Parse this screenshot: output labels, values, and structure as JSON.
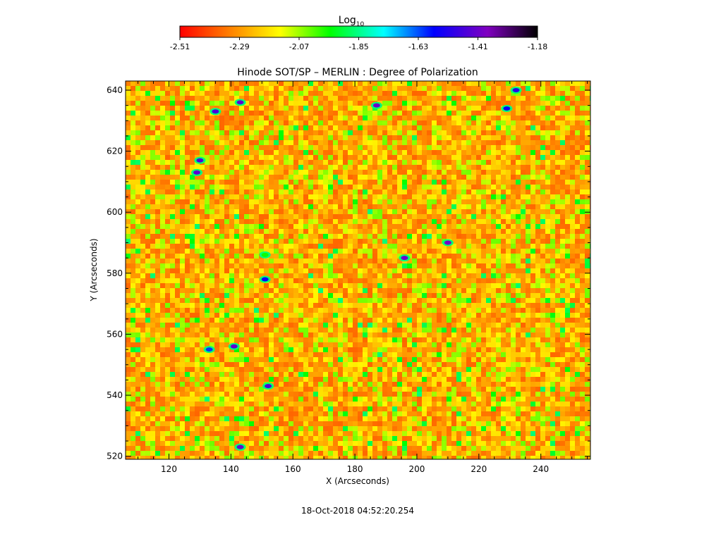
{
  "chart_data": {
    "type": "heatmap",
    "title": "Hinode SOT/SP – MERLIN : Degree of Polarization",
    "xlabel": "X (Arcseconds)",
    "ylabel": "Y (Arcseconds)",
    "xlim": [
      106,
      256
    ],
    "ylim": [
      519,
      643
    ],
    "xticks": [
      120,
      140,
      160,
      180,
      200,
      220,
      240
    ],
    "yticks": [
      520,
      540,
      560,
      580,
      600,
      620,
      640
    ],
    "colorbar": {
      "label_base": "Log",
      "label_sub": "10",
      "range": [
        -2.51,
        -1.18
      ],
      "ticks": [
        "-2.51",
        "-2.29",
        "-2.07",
        "-1.85",
        "-1.63",
        "-1.41",
        "-1.18"
      ],
      "colormap": [
        "#ff0000",
        "#ff8000",
        "#ffff00",
        "#00ff00",
        "#00ffff",
        "#0000ff",
        "#8000c0",
        "#000000"
      ]
    },
    "grid": false,
    "timestamp": "18-Oct-2018 04:52:20.254",
    "strong_polarization_patches": [
      {
        "x": 143,
        "y": 636,
        "value": -1.42
      },
      {
        "x": 135,
        "y": 633,
        "value": -1.45
      },
      {
        "x": 187,
        "y": 635,
        "value": -1.4
      },
      {
        "x": 130,
        "y": 617,
        "value": -1.45
      },
      {
        "x": 129,
        "y": 613,
        "value": -1.42
      },
      {
        "x": 210,
        "y": 590,
        "value": -1.38
      },
      {
        "x": 196,
        "y": 585,
        "value": -1.4
      },
      {
        "x": 151,
        "y": 586,
        "value": -1.95
      },
      {
        "x": 151,
        "y": 578,
        "value": -1.55
      },
      {
        "x": 141,
        "y": 556,
        "value": -1.42
      },
      {
        "x": 152,
        "y": 543,
        "value": -1.45
      },
      {
        "x": 143,
        "y": 523,
        "value": -1.4
      },
      {
        "x": 232,
        "y": 640,
        "value": -1.5
      },
      {
        "x": 133,
        "y": 555,
        "value": -1.6
      },
      {
        "x": 229,
        "y": 634,
        "value": -1.55
      }
    ]
  }
}
